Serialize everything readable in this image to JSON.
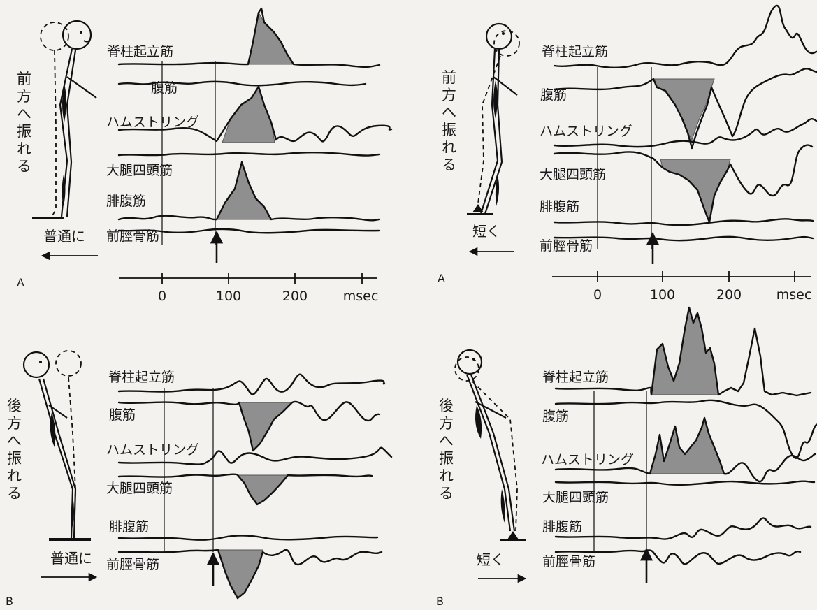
{
  "panels": [
    {
      "id": "tl",
      "letter": "A",
      "direction": [
        "前",
        "方",
        "へ",
        "振",
        "れ",
        "る"
      ],
      "base_label": "普通に",
      "arrow_dir": "left",
      "muscles": [
        "脊柱起立筋",
        "腹筋",
        "ハムストリング",
        "大腿四頭筋",
        "腓腹筋",
        "前脛骨筋"
      ],
      "ticks": [
        "0",
        "100",
        "200",
        "msec"
      ]
    },
    {
      "id": "tr",
      "letter": "A",
      "direction": [
        "前",
        "方",
        "へ",
        "振",
        "れ",
        "る"
      ],
      "base_label": "短く",
      "arrow_dir": "left",
      "muscles": [
        "脊柱起立筋",
        "腹筋",
        "ハムストリング",
        "大腿四頭筋",
        "腓腹筋",
        "前脛骨筋"
      ],
      "ticks": [
        "0",
        "100",
        "200",
        "msec"
      ]
    },
    {
      "id": "bl",
      "letter": "B",
      "direction": [
        "後",
        "方",
        "へ",
        "振",
        "れ",
        "る"
      ],
      "base_label": "普通に",
      "arrow_dir": "right",
      "muscles": [
        "脊柱起立筋",
        "腹筋",
        "ハムストリング",
        "大腿四頭筋",
        "腓腹筋",
        "前脛骨筋"
      ],
      "ticks": []
    },
    {
      "id": "br",
      "letter": "B",
      "direction": [
        "後",
        "方",
        "へ",
        "振",
        "れ",
        "る"
      ],
      "base_label": "短く",
      "arrow_dir": "right",
      "muscles": [
        "脊柱起立筋",
        "腹筋",
        "ハムストリング",
        "大腿四頭筋",
        "腓腹筋",
        "前脛骨筋"
      ],
      "ticks": []
    }
  ]
}
